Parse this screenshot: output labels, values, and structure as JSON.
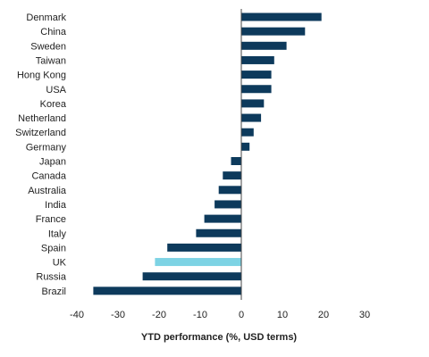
{
  "chart_data": {
    "type": "bar",
    "orientation": "horizontal",
    "categories": [
      "Denmark",
      "China",
      "Sweden",
      "Taiwan",
      "Hong Kong",
      "USA",
      "Korea",
      "Netherland",
      "Switzerland",
      "Germany",
      "Japan",
      "Canada",
      "Australia",
      "India",
      "France",
      "Italy",
      "Spain",
      "UK",
      "Russia",
      "Brazil"
    ],
    "values": [
      19.5,
      15.5,
      11,
      8,
      7.3,
      7.3,
      5.5,
      4.8,
      3,
      2,
      -2.5,
      -4.5,
      -5.5,
      -6.5,
      -9,
      -11,
      -18,
      -21,
      -24,
      -36
    ],
    "highlight_category": "UK",
    "colors": {
      "bar": "#0d3a5c",
      "highlight": "#7dd3e4"
    },
    "xlim": [
      -40,
      30
    ],
    "xticks": [
      -40,
      -30,
      -20,
      -10,
      0,
      10,
      20,
      30
    ],
    "xlabel": "YTD performance (%, USD terms)",
    "title": "",
    "grid": false
  }
}
